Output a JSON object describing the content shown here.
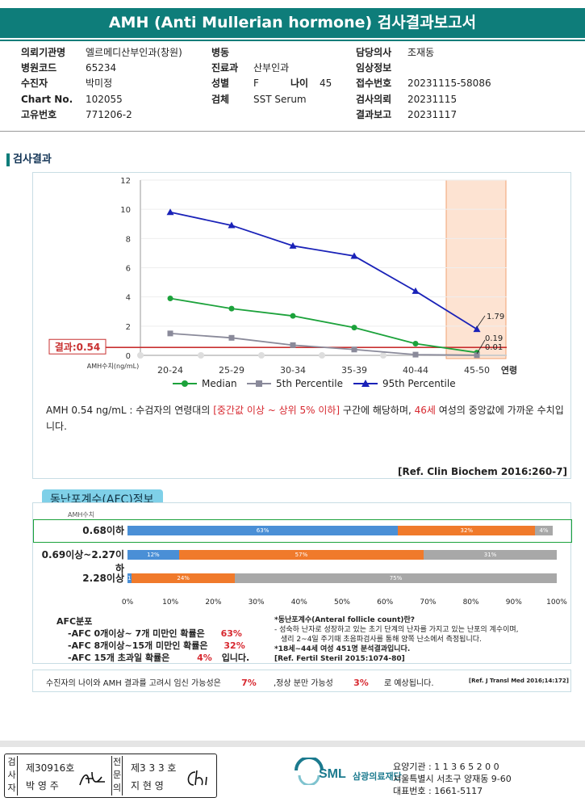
{
  "report": {
    "title": "AMH (Anti Mullerian hormone) 검사결과보고서"
  },
  "patient": {
    "col1": [
      {
        "label": "의뢰기관명",
        "value": "엘르메디산부인과(창원)"
      },
      {
        "label": "병원코드",
        "value": "65234"
      },
      {
        "label": "수진자",
        "value": "박미정"
      },
      {
        "label": "Chart No.",
        "value": "102055"
      },
      {
        "label": "고유번호",
        "value": "771206-2"
      }
    ],
    "col2": [
      {
        "label": "병동",
        "value": ""
      },
      {
        "label": "진료과",
        "value": "산부인과"
      },
      {
        "label": "성별",
        "value": "F"
      },
      {
        "label": "검체",
        "value": "SST Serum"
      }
    ],
    "age_label": "나이",
    "age_value": "45",
    "col3": [
      {
        "label": "담당의사",
        "value": "조재동"
      },
      {
        "label": "임상정보",
        "value": ""
      },
      {
        "label": "접수번호",
        "value": "20231115-58086"
      },
      {
        "label": "검사의뢰",
        "value": "20231115"
      },
      {
        "label": "결과보고",
        "value": "20231117"
      }
    ]
  },
  "section_title": "검사결과",
  "chart_data": {
    "type": "line",
    "categories": [
      "20-24",
      "25-29",
      "30-34",
      "35-39",
      "40-44",
      "45-50"
    ],
    "xlabel_extra": "연령",
    "ylabel": "AMH수치(ng/mL)",
    "ylim": [
      0,
      12
    ],
    "yticks": [
      "0",
      "2",
      "4",
      "6",
      "8",
      "10",
      "12"
    ],
    "series": [
      {
        "name": "Median",
        "color": "#1ca23b",
        "marker": "circle",
        "values": [
          3.9,
          3.2,
          2.7,
          1.9,
          0.8,
          0.19
        ]
      },
      {
        "name": "5th Percentile",
        "color": "#8a8a9a",
        "marker": "square",
        "values": [
          1.5,
          1.2,
          0.7,
          0.4,
          0.05,
          0.01
        ]
      },
      {
        "name": "95th Percentile",
        "color": "#1a22b8",
        "marker": "triangle",
        "values": [
          9.8,
          8.9,
          7.5,
          6.8,
          4.4,
          1.79
        ]
      }
    ],
    "end_labels": [
      "1.79",
      "0.19",
      "0.01"
    ],
    "result_value": 0.54,
    "result_label": "결과:0.54",
    "highlight_category": "45-50"
  },
  "comment": {
    "p1": "AMH  0.54 ng/mL : 수검자의 연령대의 ",
    "p2": "[중간값 이상 ~ 상위 5% 이하]",
    "p3": " 구간에 해당하며, ",
    "p4": "46세",
    "p5": " 여성의 중앙값에 가까운 수치입니다.",
    "ref": "[Ref. Clin Biochem 2016:260-7]"
  },
  "afc": {
    "tab": "동난포계수(AFC)정보",
    "axis_title": "AMH수치",
    "rows": [
      {
        "label": "0.68이하",
        "segments": [
          {
            "pct": 63,
            "text": "63%",
            "color": "#4a8fd6"
          },
          {
            "pct": 32,
            "text": "32%",
            "color": "#f07a2b"
          },
          {
            "pct": 4,
            "text": "4%",
            "color": "#a8a8a8"
          }
        ]
      },
      {
        "label": "0.69이상~2.27이하",
        "segments": [
          {
            "pct": 12,
            "text": "12%",
            "color": "#4a8fd6"
          },
          {
            "pct": 57,
            "text": "57%",
            "color": "#f07a2b"
          },
          {
            "pct": 31,
            "text": "31%",
            "color": "#a8a8a8"
          }
        ]
      },
      {
        "label": "2.28이상",
        "segments": [
          {
            "pct": 1,
            "text": "1%",
            "color": "#4a8fd6"
          },
          {
            "pct": 24,
            "text": "24%",
            "color": "#f07a2b"
          },
          {
            "pct": 75,
            "text": "75%",
            "color": "#a8a8a8"
          }
        ]
      }
    ],
    "ticks": [
      "0%",
      "10%",
      "20%",
      "30%",
      "40%",
      "50%",
      "60%",
      "70%",
      "80%",
      "90%",
      "100%"
    ],
    "dist_title": "AFC분포",
    "dist": [
      {
        "text": "-AFC  0개이상~ 7개 미만인 확률은",
        "pct": "63%",
        "tail": ""
      },
      {
        "text": "-AFC  8개이상~15개 미만인 확률은",
        "pct": "32%",
        "tail": ""
      },
      {
        "text": "-AFC  15개 초과일 확률은",
        "pct": "4%",
        "tail": "입니다."
      }
    ],
    "notes": [
      "*동난포계수(Anteral follicle count)란?",
      "- 성숙하 난자로 성장하고 있는 초기 단계의 난자를 가지고 있는 난포의 계수이며,",
      "  생리 2~4일 주기때 초음파검사를 통해 양쪽 난소에서 측정됩니다.",
      "*18세~44세 여성 451명 분석결과입니다.",
      "[Ref. Fertil Steril 2015:1074-80]"
    ],
    "summary_a": "수진자의  나이와 AMH 결과를 고려시 임신 가능성은",
    "summary_b": "7%",
    "summary_c": ",정상 분만 가능성",
    "summary_d": "3%",
    "summary_e": "로 예상됩니다.",
    "summary_ref": "[Ref. J Transl Med 2016;14:172]"
  },
  "footer": {
    "inspector_tag": "검사자",
    "inspector_no": "제30916호",
    "inspector_name": "박 영 주",
    "specialist_tag": "전문의",
    "specialist_no": "제3 3 3 호",
    "specialist_name": "지 현 영",
    "logo_main": "SML",
    "logo_sub": "삼광의료재단",
    "line1": "요양기관 : 1 1 3 6 5 2 0 0",
    "line2": "서울특별시 서초구 양재동 9-60",
    "line3": "대표번호 : 1661-5117"
  }
}
